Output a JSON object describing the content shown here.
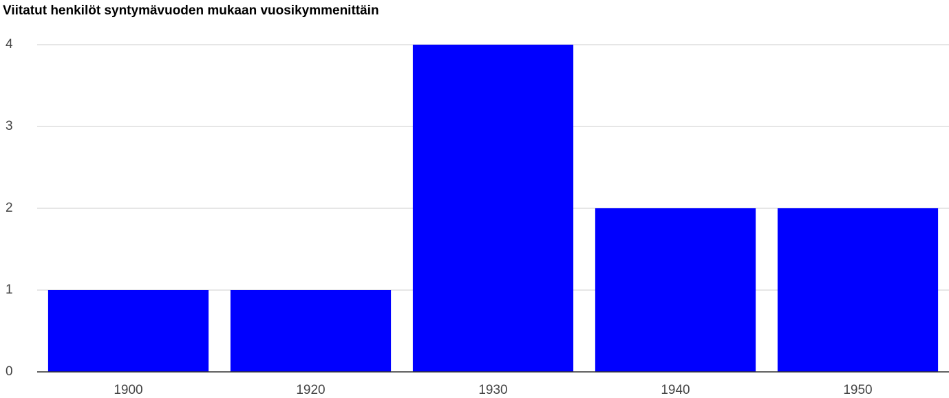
{
  "chart_data": {
    "type": "bar",
    "title": "Viitatut henkilöt syntymävuoden mukaan vuosikymmenittäin",
    "categories": [
      "1900",
      "1920",
      "1930",
      "1940",
      "1950"
    ],
    "values": [
      1,
      1,
      4,
      2,
      2
    ],
    "color": "#0000ff",
    "ylim": [
      0,
      4
    ],
    "yticks": [
      0,
      1,
      2,
      3,
      4
    ],
    "grid": true
  }
}
